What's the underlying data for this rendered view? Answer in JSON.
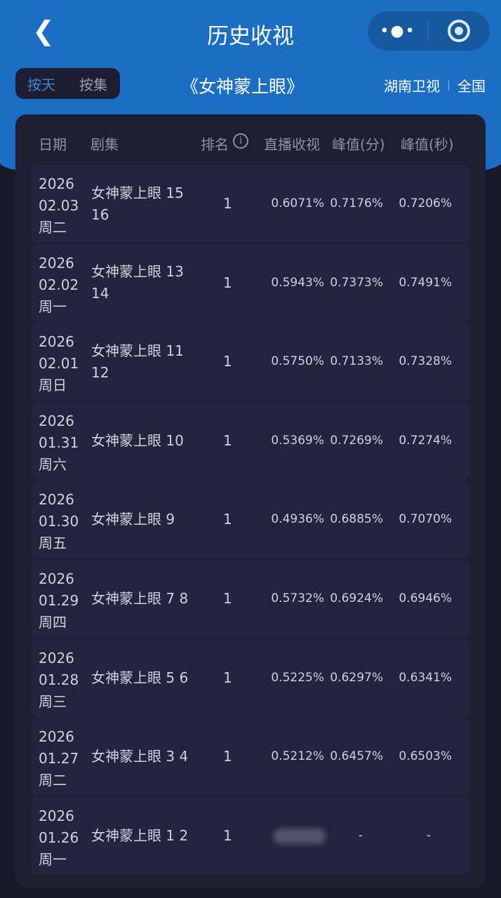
{
  "nav": {
    "title": "历史收视",
    "more": "•●•"
  },
  "segment": {
    "by_day": "按天",
    "by_episode": "按集"
  },
  "show_title": "《女神蒙上眼》",
  "channel": "湖南卫视",
  "region": "全国",
  "columns": {
    "date": "日期",
    "episode": "剧集",
    "rank": "排名",
    "live": "直播收视",
    "peak_min": "峰值(分)",
    "peak_sec": "峰值(秒)"
  },
  "rows": [
    {
      "year": "2026",
      "md": "02.03",
      "wd": "周二",
      "ep": "女神蒙上眼 15 16",
      "rank": "1",
      "live": "0.6071%",
      "pm": "0.7176%",
      "ps": "0.7206%"
    },
    {
      "year": "2026",
      "md": "02.02",
      "wd": "周一",
      "ep": "女神蒙上眼 13 14",
      "rank": "1",
      "live": "0.5943%",
      "pm": "0.7373%",
      "ps": "0.7491%"
    },
    {
      "year": "2026",
      "md": "02.01",
      "wd": "周日",
      "ep": "女神蒙上眼 11 12",
      "rank": "1",
      "live": "0.5750%",
      "pm": "0.7133%",
      "ps": "0.7328%"
    },
    {
      "year": "2026",
      "md": "01.31",
      "wd": "周六",
      "ep": "女神蒙上眼 10",
      "rank": "1",
      "live": "0.5369%",
      "pm": "0.7269%",
      "ps": "0.7274%"
    },
    {
      "year": "2026",
      "md": "01.30",
      "wd": "周五",
      "ep": "女神蒙上眼 9",
      "rank": "1",
      "live": "0.4936%",
      "pm": "0.6885%",
      "ps": "0.7070%"
    },
    {
      "year": "2026",
      "md": "01.29",
      "wd": "周四",
      "ep": "女神蒙上眼 7 8",
      "rank": "1",
      "live": "0.5732%",
      "pm": "0.6924%",
      "ps": "0.6946%"
    },
    {
      "year": "2026",
      "md": "01.28",
      "wd": "周三",
      "ep": "女神蒙上眼 5 6",
      "rank": "1",
      "live": "0.5225%",
      "pm": "0.6297%",
      "ps": "0.6341%"
    },
    {
      "year": "2026",
      "md": "01.27",
      "wd": "周二",
      "ep": "女神蒙上眼 3 4",
      "rank": "1",
      "live": "0.5212%",
      "pm": "0.6457%",
      "ps": "0.6503%"
    },
    {
      "year": "2026",
      "md": "01.26",
      "wd": "周一",
      "ep": "女神蒙上眼 1 2",
      "rank": "1",
      "live": null,
      "pm": "-",
      "ps": "-"
    }
  ]
}
